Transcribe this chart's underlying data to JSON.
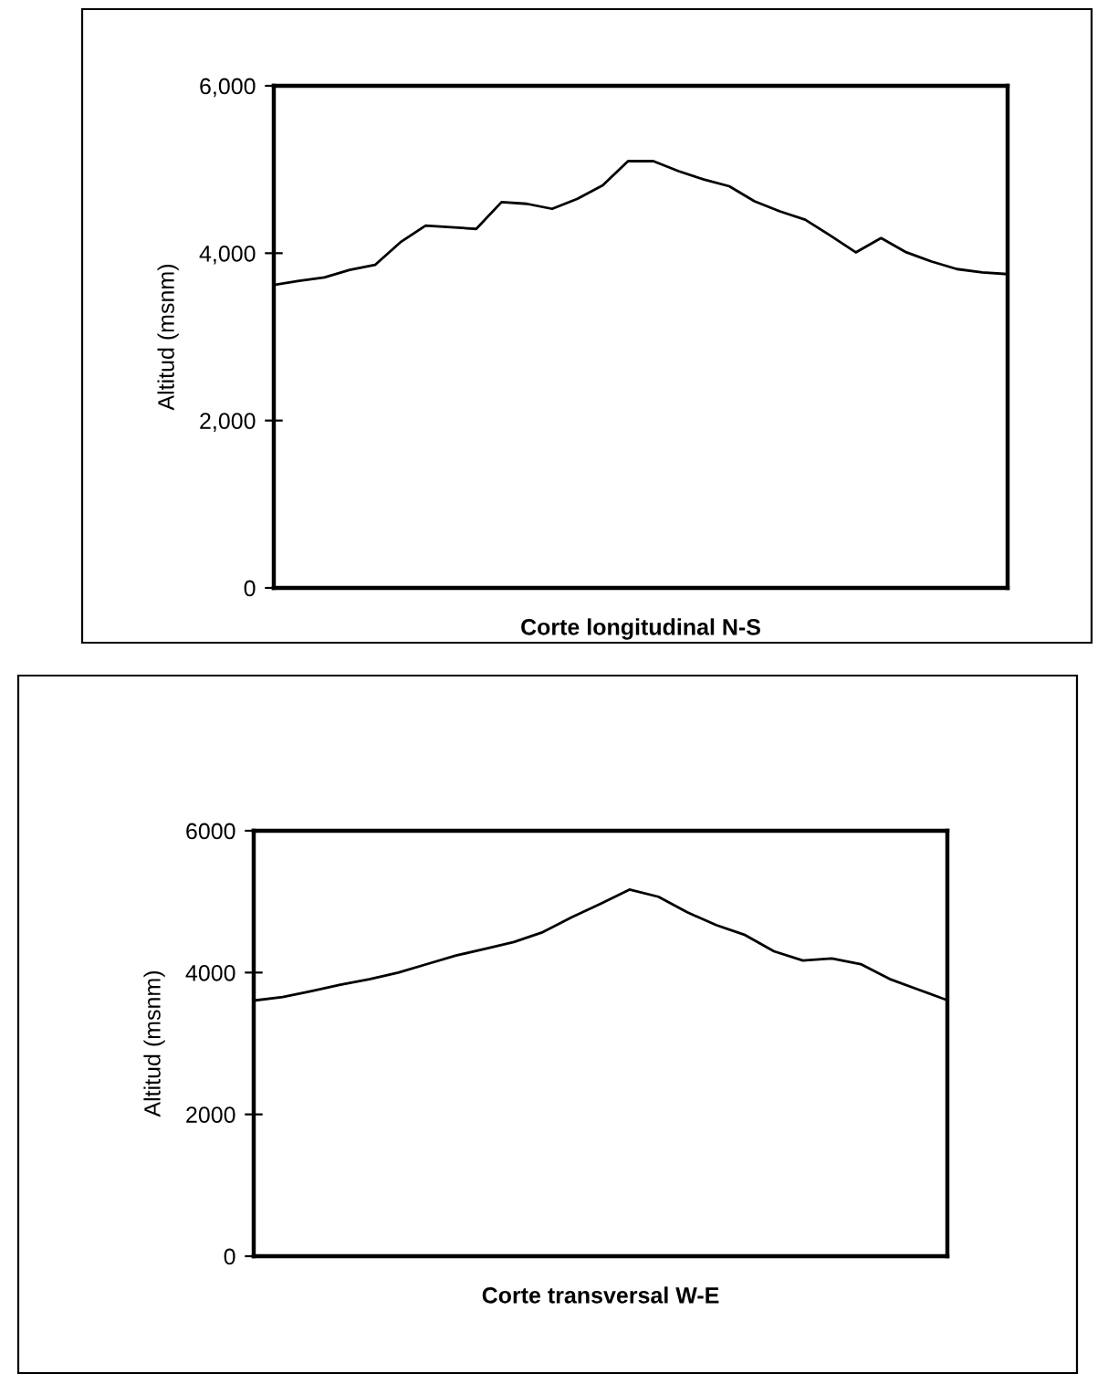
{
  "chart_data": [
    {
      "type": "line",
      "xlabel": "Corte longitudinal N-S",
      "ylabel": "Altitud (msnm)",
      "color": "#000000",
      "categories": [
        null,
        null,
        null,
        null,
        null,
        null,
        null,
        null,
        null,
        null,
        null,
        null,
        null,
        null,
        null,
        null,
        null,
        null,
        null,
        null,
        null,
        null,
        null,
        null,
        null,
        null,
        null,
        null,
        null,
        null
      ],
      "values": [
        3620,
        3670,
        3710,
        3800,
        3860,
        4130,
        4330,
        4310,
        4290,
        4610,
        4590,
        4530,
        4650,
        4810,
        5100,
        5100,
        4980,
        4880,
        4800,
        4620,
        4500,
        4400,
        4210,
        4010,
        4180,
        4010,
        3900,
        3810,
        3770,
        3750
      ],
      "ylim": [
        0,
        6000
      ],
      "yticks": [
        {
          "value": 0,
          "label": "0"
        },
        {
          "value": 2000,
          "label": "2,000"
        },
        {
          "value": 4000,
          "label": "4,000"
        },
        {
          "value": 6000,
          "label": "6,000"
        }
      ],
      "grid": false,
      "legend": false
    },
    {
      "type": "line",
      "xlabel": "Corte transversal W-E",
      "ylabel": "Altitud (msnm)",
      "color": "#000000",
      "categories": [
        null,
        null,
        null,
        null,
        null,
        null,
        null,
        null,
        null,
        null,
        null,
        null,
        null,
        null,
        null,
        null,
        null,
        null,
        null,
        null,
        null,
        null,
        null,
        null,
        null
      ],
      "values": [
        3605,
        3655,
        3740,
        3830,
        3905,
        4000,
        4120,
        4240,
        4335,
        4430,
        4570,
        4780,
        4970,
        5170,
        5070,
        4850,
        4670,
        4530,
        4300,
        4170,
        4200,
        4120,
        3910,
        3760,
        3610
      ],
      "ylim": [
        0,
        6000
      ],
      "yticks": [
        0,
        2000,
        4000,
        6000
      ],
      "grid": false,
      "legend": false
    }
  ]
}
